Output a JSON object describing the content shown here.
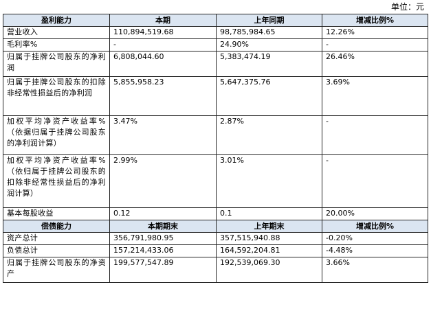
{
  "unit": "单位：元",
  "profitability": {
    "headers": [
      "盈利能力",
      "本期",
      "上年同期",
      "增减比例%"
    ],
    "rows": [
      [
        "营业收入",
        "110,894,519.68",
        "98,785,984.65",
        "12.26%"
      ],
      [
        "毛利率%",
        "-",
        "24.90%",
        "-"
      ],
      [
        "归属于挂牌公司股东的净利润",
        "6,808,044.60",
        "5,383,474.19",
        "26.46%"
      ],
      [
        "归属于挂牌公司股东的扣除非经常性损益后的净利润",
        "5,855,958.23",
        "5,647,375.76",
        "3.69%"
      ],
      [
        "加权平均净资产收益率%（依据归属于挂牌公司股东的净利润计算）",
        "3.47%",
        "2.87%",
        "-"
      ],
      [
        "加权平均净资产收益率%（依归属于挂牌公司股东的扣除非经常性损益后的净利润计算）",
        "2.99%",
        "3.01%",
        "-"
      ],
      [
        "基本每股收益",
        "0.12",
        "0.1",
        "20.00%"
      ]
    ]
  },
  "solvency": {
    "headers": [
      "偿债能力",
      "本期期末",
      "上年期末",
      "增减比例%"
    ],
    "rows": [
      [
        "资产总计",
        "356,791,980.95",
        "357,515,940.88",
        "-0.20%"
      ],
      [
        "负债总计",
        "157,214,433.06",
        "164,592,204.81",
        "-4.48%"
      ],
      [
        "归属于挂牌公司股东的净资产",
        "199,577,547.89",
        "192,539,069.30",
        "3.66%"
      ]
    ]
  }
}
